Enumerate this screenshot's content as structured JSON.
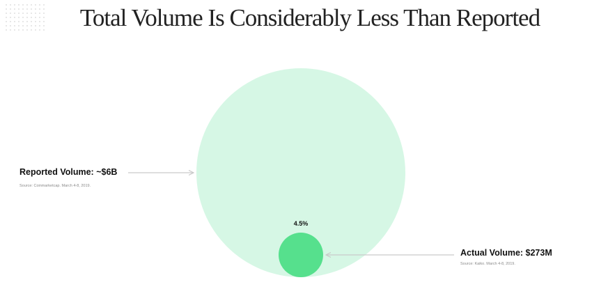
{
  "title": "Total Volume Is Considerably Less Than Reported",
  "colors": {
    "reported": "#d6f7e5",
    "actual": "#56e08d",
    "arrow": "#c9c9c9"
  },
  "chart_data": {
    "type": "bubble",
    "series": [
      {
        "name": "Reported Volume: ~$6B",
        "value": 6000000000,
        "source": "Source: Coinmarketcap. March 4-8, 2019."
      },
      {
        "name": "Actual Volume: $273M",
        "value": 273000000,
        "source": "Source: Kaiko. March 4-8, 2019."
      }
    ],
    "annotation": "4.5%"
  }
}
